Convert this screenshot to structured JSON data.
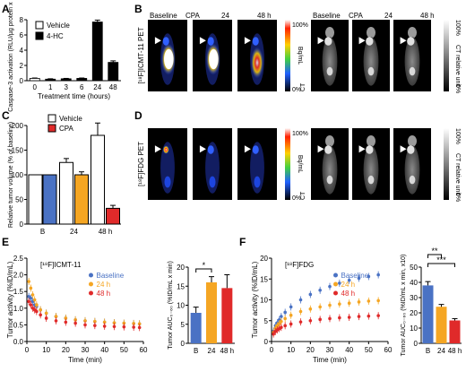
{
  "colors": {
    "vehicle_fill": "#ffffff",
    "hc_fill": "#000000",
    "baseline": "#4a72c4",
    "cpa": "#f5a623",
    "h24": "#f5a623",
    "h48": "#e02a2a",
    "scan_bg": "#000000"
  },
  "panel_letters": {
    "A": "A",
    "B": "B",
    "C": "C",
    "D": "D",
    "E": "E",
    "F": "F"
  },
  "chart_data": [
    {
      "panel": "A",
      "type": "bar",
      "ylabel": "Caspase-3 activation (RLU/µg protein x 10⁴)",
      "xlabel": "Treatment time (hours)",
      "categories": [
        "0",
        "1",
        "3",
        "6",
        "24",
        "48"
      ],
      "ylim": [
        0,
        8
      ],
      "yticks": [
        0,
        2,
        4,
        6,
        8
      ],
      "series": [
        {
          "name": "Vehicle",
          "values": [
            0.3,
            null,
            null,
            null,
            null,
            null
          ],
          "errors": [
            0.05,
            null,
            null,
            null,
            null,
            null
          ]
        },
        {
          "name": "4-HC",
          "values": [
            null,
            0.2,
            0.25,
            0.3,
            7.7,
            2.4
          ],
          "errors": [
            null,
            0.05,
            0.05,
            0.05,
            0.25,
            0.2
          ]
        }
      ],
      "legend": [
        "Vehicle",
        "4-HC"
      ]
    },
    {
      "panel": "C",
      "type": "bar",
      "ylabel": "Relative tumor volume (% of baseline)",
      "categories": [
        "B",
        "24",
        "48 h"
      ],
      "ylim": [
        0,
        200
      ],
      "yticks": [
        0,
        50,
        100,
        150,
        200
      ],
      "series": [
        {
          "name": "Vehicle",
          "values": [
            100,
            125,
            180
          ],
          "errors": [
            0,
            8,
            25
          ]
        },
        {
          "name": "CPA",
          "values": [
            100,
            100,
            32
          ],
          "errors": [
            0,
            6,
            6
          ]
        }
      ],
      "legend": [
        "Vehicle",
        "CPA"
      ]
    },
    {
      "panel": "E",
      "type": "scatter",
      "title": "[¹⁸F]ICMT-11",
      "ylabel": "Tumor activity (%ID/mL)",
      "xlabel": "Time (min)",
      "xlim": [
        0,
        60
      ],
      "ylim": [
        0,
        2.5
      ],
      "xticks": [
        0,
        10,
        20,
        30,
        40,
        50,
        60
      ],
      "yticks": [
        0.0,
        0.5,
        1.0,
        1.5,
        2.0,
        2.5
      ],
      "series": [
        {
          "name": "Baseline",
          "x": [
            1,
            2,
            3,
            4,
            5,
            7,
            10,
            15,
            20,
            25,
            30,
            35,
            40,
            45,
            50,
            55,
            58
          ],
          "y": [
            1.35,
            1.3,
            1.2,
            1.1,
            1.05,
            0.95,
            0.85,
            0.75,
            0.7,
            0.65,
            0.62,
            0.6,
            0.58,
            0.56,
            0.55,
            0.54,
            0.53
          ]
        },
        {
          "name": "24 h",
          "x": [
            1,
            2,
            3,
            4,
            5,
            7,
            10,
            15,
            20,
            25,
            30,
            35,
            40,
            45,
            50,
            55,
            58
          ],
          "y": [
            1.8,
            1.6,
            1.4,
            1.25,
            1.1,
            0.95,
            0.85,
            0.75,
            0.7,
            0.65,
            0.62,
            0.6,
            0.58,
            0.56,
            0.55,
            0.54,
            0.53
          ]
        },
        {
          "name": "48 h",
          "x": [
            1,
            2,
            3,
            4,
            5,
            7,
            10,
            15,
            20,
            25,
            30,
            35,
            40,
            45,
            50,
            55,
            58
          ],
          "y": [
            1.2,
            1.1,
            1.0,
            0.95,
            0.9,
            0.8,
            0.7,
            0.62,
            0.58,
            0.55,
            0.5,
            0.48,
            0.46,
            0.45,
            0.44,
            0.43,
            0.42
          ]
        }
      ],
      "legend": [
        "Baseline",
        "24 h",
        "48 h"
      ]
    },
    {
      "panel": "E-inset",
      "type": "bar",
      "ylabel": "Tumor AUC₀₋₆₀ (%ID/mL x min)",
      "categories": [
        "B",
        "24",
        "48 h"
      ],
      "ylim": [
        0,
        20
      ],
      "yticks": [
        0,
        5,
        10,
        15,
        20
      ],
      "values": [
        8,
        16,
        14.5
      ],
      "errors": [
        1.5,
        1.5,
        3.5
      ],
      "annotations": [
        "*"
      ]
    },
    {
      "panel": "F",
      "type": "scatter",
      "title": "[¹⁸F]FDG",
      "ylabel": "Tumor activity (%ID/mL)",
      "xlabel": "Time (min)",
      "xlim": [
        0,
        60
      ],
      "ylim": [
        0,
        20
      ],
      "xticks": [
        0,
        10,
        20,
        30,
        40,
        50,
        60
      ],
      "yticks": [
        0,
        5,
        10,
        15,
        20
      ],
      "series": [
        {
          "name": "Baseline",
          "x": [
            1,
            2,
            3,
            4,
            5,
            7,
            10,
            15,
            20,
            25,
            30,
            35,
            40,
            45,
            50,
            55
          ],
          "y": [
            2.5,
            3.8,
            4.5,
            5.2,
            6,
            7,
            8.3,
            10,
            11.3,
            12.3,
            13.2,
            14,
            14.7,
            15.2,
            15.6,
            16
          ]
        },
        {
          "name": "24 h",
          "x": [
            1,
            2,
            3,
            4,
            5,
            7,
            10,
            15,
            20,
            25,
            30,
            35,
            40,
            45,
            50,
            55
          ],
          "y": [
            2.2,
            3.2,
            3.8,
            4.3,
            4.8,
            5.5,
            6.3,
            7.2,
            7.8,
            8.3,
            8.7,
            9,
            9.2,
            9.5,
            9.7,
            9.8
          ]
        },
        {
          "name": "48 h",
          "x": [
            1,
            2,
            3,
            4,
            5,
            7,
            10,
            15,
            20,
            25,
            30,
            35,
            40,
            45,
            50,
            55
          ],
          "y": [
            1.8,
            2.4,
            2.8,
            3.1,
            3.4,
            3.8,
            4.2,
            4.7,
            5,
            5.3,
            5.5,
            5.7,
            5.8,
            6,
            6.1,
            6.2
          ]
        }
      ],
      "legend": [
        "Baseline",
        "24 h",
        "48 h"
      ]
    },
    {
      "panel": "F-inset",
      "type": "bar",
      "ylabel": "Tumor AUC₀₋₆₀ (%ID/mL x min, x10)",
      "categories": [
        "B",
        "24",
        "48 h"
      ],
      "ylim": [
        0,
        50
      ],
      "yticks": [
        0,
        10,
        20,
        30,
        40,
        50
      ],
      "values": [
        38,
        24,
        15
      ],
      "errors": [
        2.5,
        1.5,
        1.2
      ],
      "annotations": [
        "**",
        "***"
      ]
    }
  ],
  "panelB": {
    "pet_labels": [
      "Baseline",
      "CPA",
      "24",
      "48 h"
    ],
    "ct_labels": [
      "Baseline",
      "CPA",
      "24",
      "48 h"
    ],
    "pet_side": "[¹⁸F]ICMT-11 PET",
    "scale_top": "100%",
    "scale_bottom": "0%",
    "unit_pet": "Bq/mL",
    "ct_side": "CT",
    "ct_scale_top": "100%",
    "ct_unit": "CT relative unit",
    "ct_scale_bottom": "0%"
  },
  "panelD": {
    "pet_side": "[¹⁸F]FDG PET",
    "scale_top": "100%",
    "scale_bottom": "0%",
    "unit_pet": "Bq/mL",
    "ct_side": "CT",
    "ct_scale_top": "100%",
    "ct_unit": "CT relative unit",
    "ct_scale_bottom": "0%"
  }
}
